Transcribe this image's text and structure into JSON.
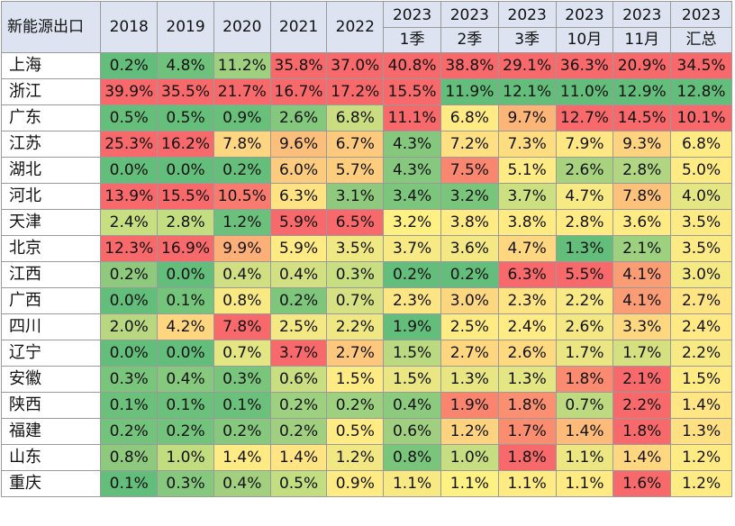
{
  "corner_label": "新能源出口",
  "columns": [
    {
      "year": "2018",
      "sub": ""
    },
    {
      "year": "2019",
      "sub": ""
    },
    {
      "year": "2020",
      "sub": ""
    },
    {
      "year": "2021",
      "sub": ""
    },
    {
      "year": "2022",
      "sub": ""
    },
    {
      "year": "2023",
      "sub": "1季"
    },
    {
      "year": "2023",
      "sub": "2季"
    },
    {
      "year": "2023",
      "sub": "3季"
    },
    {
      "year": "2023",
      "sub": "10月"
    },
    {
      "year": "2023",
      "sub": "11月"
    },
    {
      "year": "2023",
      "sub": "汇总"
    }
  ],
  "rows": [
    {
      "name": "上海",
      "values": [
        "0.2%",
        "4.8%",
        "11.2%",
        "35.8%",
        "37.0%",
        "40.8%",
        "38.8%",
        "29.1%",
        "36.3%",
        "20.9%",
        "34.5%"
      ],
      "colors": [
        "#63be7b",
        "#6fc27c",
        "#9fd07f",
        "#f8696b",
        "#f8696b",
        "#f8696b",
        "#f8696b",
        "#f8696b",
        "#f8696b",
        "#f8696b",
        "#f8696b"
      ]
    },
    {
      "name": "浙江",
      "values": [
        "39.9%",
        "35.5%",
        "21.7%",
        "16.7%",
        "17.2%",
        "15.5%",
        "11.9%",
        "12.1%",
        "11.0%",
        "12.9%",
        "12.8%"
      ],
      "colors": [
        "#f8696b",
        "#f8696b",
        "#f8696b",
        "#f8696b",
        "#f8696b",
        "#f8696b",
        "#63be7b",
        "#63be7b",
        "#63be7b",
        "#63be7b",
        "#63be7b"
      ]
    },
    {
      "name": "广东",
      "values": [
        "0.5%",
        "0.5%",
        "0.9%",
        "2.6%",
        "6.8%",
        "11.1%",
        "6.8%",
        "9.7%",
        "12.7%",
        "14.5%",
        "10.1%"
      ],
      "colors": [
        "#65bf7b",
        "#65bf7b",
        "#68c07b",
        "#84c87d",
        "#cbdd81",
        "#f8696b",
        "#ffeb84",
        "#fbb577",
        "#f8696b",
        "#f8696b",
        "#f8696b"
      ]
    },
    {
      "name": "江苏",
      "values": [
        "25.3%",
        "16.2%",
        "7.8%",
        "9.6%",
        "6.7%",
        "4.3%",
        "7.2%",
        "7.3%",
        "7.9%",
        "9.3%",
        "6.8%"
      ],
      "colors": [
        "#f8696b",
        "#f8696b",
        "#fed580",
        "#fcbf7b",
        "#fdc97d",
        "#85c87d",
        "#fedf82",
        "#fedd81",
        "#ffe783",
        "#fdd37f",
        "#ffeb84"
      ]
    },
    {
      "name": "湖北",
      "values": [
        "0.0%",
        "0.0%",
        "0.2%",
        "6.0%",
        "5.7%",
        "4.3%",
        "7.5%",
        "5.1%",
        "2.6%",
        "2.8%",
        "5.0%"
      ],
      "colors": [
        "#63be7b",
        "#63be7b",
        "#65bf7b",
        "#fdcb7d",
        "#fdcd7e",
        "#86c87d",
        "#f9866f",
        "#ffeb84",
        "#a9d27f",
        "#b1d580",
        "#ffeb84"
      ]
    },
    {
      "name": "河北",
      "values": [
        "13.9%",
        "15.5%",
        "10.5%",
        "6.3%",
        "3.1%",
        "3.4%",
        "3.2%",
        "3.7%",
        "4.7%",
        "7.8%",
        "4.0%"
      ],
      "colors": [
        "#f8696b",
        "#f8696b",
        "#f97a6e",
        "#ffe383",
        "#8ec97d",
        "#7bc57c",
        "#7ac57c",
        "#cde081",
        "#f7e983",
        "#fcc27b",
        "#e4e683"
      ]
    },
    {
      "name": "天津",
      "values": [
        "2.4%",
        "2.8%",
        "1.2%",
        "5.9%",
        "6.5%",
        "3.2%",
        "3.8%",
        "3.8%",
        "2.8%",
        "3.6%",
        "3.5%"
      ],
      "colors": [
        "#c7de81",
        "#c3dd81",
        "#6bc17c",
        "#f8696b",
        "#f8696b",
        "#fef083",
        "#ffeb84",
        "#ffeb84",
        "#ffeb84",
        "#ffeb84",
        "#fcea84"
      ]
    },
    {
      "name": "北京",
      "values": [
        "12.3%",
        "16.9%",
        "9.9%",
        "5.9%",
        "3.5%",
        "3.7%",
        "3.6%",
        "4.7%",
        "1.3%",
        "2.1%",
        "3.5%"
      ],
      "colors": [
        "#f8696b",
        "#f8696b",
        "#fcaf77",
        "#ffeb84",
        "#f0e883",
        "#f7e983",
        "#f3e883",
        "#fed780",
        "#63be7b",
        "#9dd07f",
        "#fcea84"
      ]
    },
    {
      "name": "江西",
      "values": [
        "0.2%",
        "0.0%",
        "0.4%",
        "0.4%",
        "0.3%",
        "0.2%",
        "0.2%",
        "6.3%",
        "5.5%",
        "4.1%",
        "3.0%"
      ],
      "colors": [
        "#8ec97d",
        "#63be7b",
        "#cfdf81",
        "#d3e082",
        "#c7de81",
        "#63be7b",
        "#63be7b",
        "#f8696b",
        "#f8696b",
        "#fb9d74",
        "#f4e983"
      ]
    },
    {
      "name": "广西",
      "values": [
        "0.0%",
        "0.1%",
        "0.8%",
        "0.2%",
        "0.7%",
        "2.3%",
        "3.0%",
        "2.3%",
        "2.2%",
        "4.1%",
        "2.7%"
      ],
      "colors": [
        "#63be7b",
        "#75c47c",
        "#f8e983",
        "#7ec67c",
        "#d5e182",
        "#fce583",
        "#fdd680",
        "#ffe483",
        "#f7e983",
        "#fb9d74",
        "#ffe483"
      ]
    },
    {
      "name": "四川",
      "values": [
        "2.0%",
        "4.2%",
        "7.8%",
        "2.5%",
        "2.2%",
        "1.9%",
        "2.5%",
        "2.4%",
        "2.6%",
        "3.3%",
        "2.4%"
      ],
      "colors": [
        "#b8d780",
        "#fed680",
        "#f8696b",
        "#f3e883",
        "#eee784",
        "#63be7b",
        "#ffeb84",
        "#ffec84",
        "#f3e883",
        "#fdd881",
        "#ffe984"
      ]
    },
    {
      "name": "辽宁",
      "values": [
        "0.0%",
        "0.0%",
        "0.7%",
        "3.7%",
        "2.7%",
        "1.5%",
        "2.7%",
        "2.6%",
        "1.7%",
        "1.7%",
        "2.2%"
      ],
      "colors": [
        "#63be7b",
        "#63be7b",
        "#e4e583",
        "#f8696b",
        "#fdc87d",
        "#bad980",
        "#fed680",
        "#fed980",
        "#e9e683",
        "#d5e081",
        "#f7e983"
      ]
    },
    {
      "name": "安徽",
      "values": [
        "0.3%",
        "0.4%",
        "0.3%",
        "0.6%",
        "1.5%",
        "1.5%",
        "1.3%",
        "1.3%",
        "1.8%",
        "2.1%",
        "1.5%"
      ],
      "colors": [
        "#7ac57c",
        "#86c87d",
        "#7ac57c",
        "#c8de81",
        "#ffeb84",
        "#e9e683",
        "#e8e683",
        "#e4e583",
        "#fa8b70",
        "#f8696b",
        "#ffeb84"
      ]
    },
    {
      "name": "陕西",
      "values": [
        "0.1%",
        "0.1%",
        "0.1%",
        "0.2%",
        "0.2%",
        "0.4%",
        "1.9%",
        "1.8%",
        "0.7%",
        "2.2%",
        "1.4%"
      ],
      "colors": [
        "#6bc17c",
        "#6bc17c",
        "#6bc17c",
        "#9dd07f",
        "#9dd07f",
        "#8cca7d",
        "#fa856f",
        "#fa8f71",
        "#bdda81",
        "#f8696b",
        "#ffe583"
      ]
    },
    {
      "name": "福建",
      "values": [
        "0.2%",
        "0.2%",
        "0.2%",
        "0.2%",
        "0.5%",
        "0.6%",
        "1.2%",
        "1.7%",
        "1.4%",
        "1.8%",
        "1.3%"
      ],
      "colors": [
        "#73c37c",
        "#73c37c",
        "#86c87d",
        "#a0d07f",
        "#ffeb84",
        "#9fcf7f",
        "#fed37f",
        "#fa8d70",
        "#fdbb7a",
        "#f8696b",
        "#fedf82"
      ]
    },
    {
      "name": "山东",
      "values": [
        "0.8%",
        "1.0%",
        "1.4%",
        "1.4%",
        "1.2%",
        "0.8%",
        "1.0%",
        "1.8%",
        "1.1%",
        "1.4%",
        "1.2%"
      ],
      "colors": [
        "#8ec97d",
        "#c2dc80",
        "#ffeb84",
        "#ffe483",
        "#f2e883",
        "#7ac57c",
        "#c6de81",
        "#f8696b",
        "#ece783",
        "#fed780",
        "#ffeb84"
      ]
    },
    {
      "name": "重庆",
      "values": [
        "0.1%",
        "0.3%",
        "0.4%",
        "0.5%",
        "0.9%",
        "1.1%",
        "1.1%",
        "1.1%",
        "1.1%",
        "1.6%",
        "1.2%"
      ],
      "colors": [
        "#63be7b",
        "#86c87d",
        "#a2d07f",
        "#c3dd81",
        "#ffeb84",
        "#f9e983",
        "#fef183",
        "#ffeb84",
        "#ffeb84",
        "#f8696b",
        "#ffeb84"
      ]
    }
  ]
}
